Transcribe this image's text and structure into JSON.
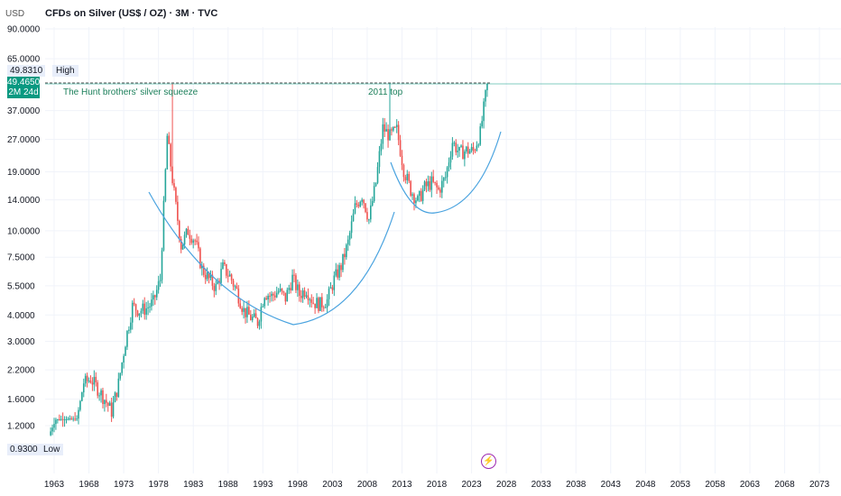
{
  "header": {
    "currency": "USD",
    "title": "CFDs on Silver (US$ / OZ) · 3M · TVC"
  },
  "markers": {
    "high_value": "49.8310",
    "high_label": "High",
    "low_value": "0.9300",
    "low_label": "Low",
    "last_price": "49.4650",
    "countdown": "2M 24d"
  },
  "annotations": {
    "hunt": "The Hunt brothers' silver squeeze",
    "top2011": "2011 top"
  },
  "colors": {
    "up": "#26a69a",
    "down": "#ef5350",
    "arc": "#4aa3df",
    "text_annot": "#1b7f5a",
    "last": "#089981",
    "grid": "#f0f3fa"
  },
  "chart_data": {
    "type": "candlestick",
    "title": "CFDs on Silver (US$ / OZ) · 3M · TVC",
    "scale": "log",
    "ylim": [
      0.8,
      95
    ],
    "xlim": [
      1960,
      2076
    ],
    "price_ticks": [
      "90.0000",
      "65.0000",
      "37.0000",
      "27.0000",
      "19.0000",
      "14.0000",
      "10.0000",
      "7.5000",
      "5.5000",
      "4.0000",
      "3.0000",
      "2.2000",
      "1.6000",
      "1.2000"
    ],
    "year_ticks": [
      "1963",
      "1968",
      "1973",
      "1978",
      "1983",
      "1988",
      "1993",
      "1998",
      "2003",
      "2008",
      "2013",
      "2018",
      "2023",
      "2028",
      "2033",
      "2038",
      "2043",
      "2048",
      "2053",
      "2058",
      "2063",
      "2068",
      "2073"
    ],
    "yearly_close_approx": {
      "start": 1962.5,
      "values": [
        1.08,
        1.28,
        1.29,
        1.29,
        1.29,
        1.9,
        2.0,
        1.8,
        1.6,
        1.4,
        1.9,
        3.0,
        4.4,
        4.2,
        4.3,
        4.6,
        5.9,
        28,
        15,
        8.5,
        10,
        9,
        6.6,
        5.9,
        5.4,
        6.7,
        6.1,
        5.2,
        4.2,
        3.9,
        3.7,
        5.1,
        4.9,
        5.2,
        4.8,
        6.0,
        5.0,
        5.3,
        4.6,
        4.5,
        4.7,
        5.9,
        6.8,
        8.8,
        12.9,
        14.8,
        11.3,
        16.9,
        30.6,
        28,
        30,
        19.5,
        15.6,
        13.8,
        16,
        16.9,
        15.5,
        17.9,
        26.4,
        23.3,
        24,
        23.8,
        29,
        49.46
      ]
    },
    "spike_highs": [
      {
        "year": 1980.0,
        "high": 49.45
      },
      {
        "year": 2011.3,
        "high": 49.83
      }
    ]
  }
}
